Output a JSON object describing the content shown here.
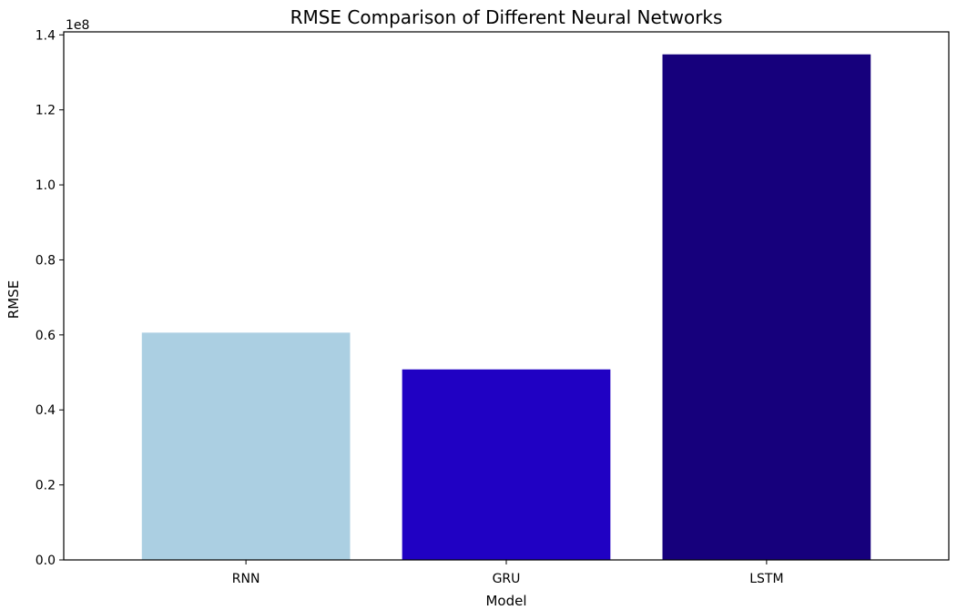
{
  "chart_data": {
    "type": "bar",
    "title": "RMSE Comparison of Different Neural Networks",
    "xlabel": "Model",
    "ylabel": "RMSE",
    "scale_label": "1e8",
    "categories": [
      "RNN",
      "GRU",
      "LSTM"
    ],
    "values": [
      60600000,
      50800000,
      134800000
    ],
    "colors": [
      "#abcfe2",
      "#2001c3",
      "#16007c"
    ],
    "ylim": [
      0,
      140800000
    ],
    "yticks": [
      {
        "value": 0,
        "label": "0.0"
      },
      {
        "value": 20000000,
        "label": "0.2"
      },
      {
        "value": 40000000,
        "label": "0.4"
      },
      {
        "value": 60000000,
        "label": "0.6"
      },
      {
        "value": 80000000,
        "label": "0.8"
      },
      {
        "value": 100000000,
        "label": "1.0"
      },
      {
        "value": 120000000,
        "label": "1.2"
      },
      {
        "value": 140000000,
        "label": "1.4"
      }
    ],
    "grid": false,
    "legend": "none"
  }
}
